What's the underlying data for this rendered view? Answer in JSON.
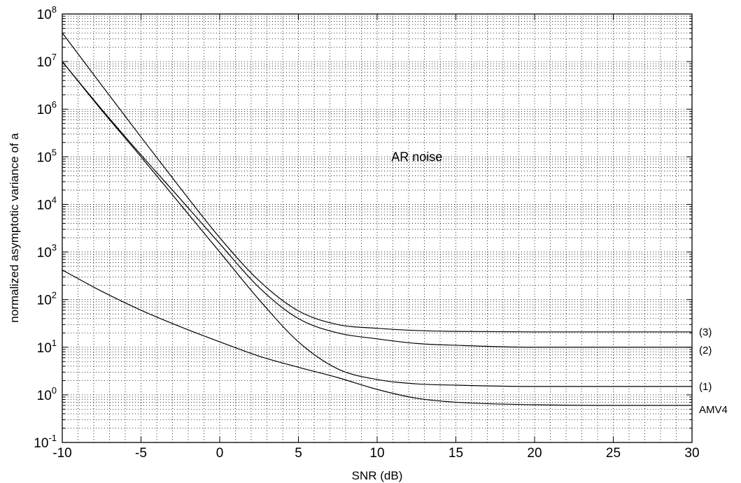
{
  "chart_data": {
    "type": "line",
    "title": "",
    "xlabel": "SNR (dB)",
    "ylabel": "normalized asymptotic variance of a",
    "xlim": [
      -10,
      30
    ],
    "ylim": [
      0.1,
      100000000
    ],
    "yscale": "log",
    "grid": true,
    "x_ticks": [
      -10,
      -5,
      0,
      5,
      10,
      15,
      20,
      25,
      30
    ],
    "x_tick_labels": [
      "-10",
      "-5",
      "0",
      "5",
      "10",
      "15",
      "20",
      "25",
      "30"
    ],
    "y_ticks": [
      {
        "base": "10",
        "exp": "-1",
        "value": 0.1
      },
      {
        "base": "10",
        "exp": "0",
        "value": 1
      },
      {
        "base": "10",
        "exp": "1",
        "value": 10
      },
      {
        "base": "10",
        "exp": "2",
        "value": 100
      },
      {
        "base": "10",
        "exp": "3",
        "value": 1000
      },
      {
        "base": "10",
        "exp": "4",
        "value": 10000
      },
      {
        "base": "10",
        "exp": "5",
        "value": 100000
      },
      {
        "base": "10",
        "exp": "6",
        "value": 1000000
      },
      {
        "base": "10",
        "exp": "7",
        "value": 10000000
      },
      {
        "base": "10",
        "exp": "8",
        "value": 100000000
      }
    ],
    "annotations": [
      {
        "text": "AR noise",
        "x": 10.9,
        "y": 100000
      }
    ],
    "series": [
      {
        "name": "(3)",
        "x": [
          -10,
          -7.5,
          -5,
          -2.5,
          0,
          2.5,
          5,
          7.5,
          10,
          12.5,
          15,
          20,
          25,
          30
        ],
        "y": [
          40000000,
          3200000,
          260000,
          22000,
          2000,
          250,
          58,
          30,
          25,
          22.5,
          21.5,
          21,
          21,
          21
        ]
      },
      {
        "name": "(2)",
        "x": [
          -10,
          -7.5,
          -5,
          -2.5,
          0,
          2.5,
          5,
          7.5,
          10,
          12.5,
          15,
          20,
          25,
          30
        ],
        "y": [
          10000000,
          1000000,
          110000,
          13000,
          1500,
          180,
          40,
          20,
          15,
          12,
          11,
          10,
          10,
          10
        ]
      },
      {
        "name": "(1)",
        "x": [
          -10,
          -7.5,
          -5,
          -2.5,
          0,
          2.5,
          5,
          7.5,
          10,
          12.5,
          15,
          20,
          25,
          30
        ],
        "y": [
          10000000,
          950000,
          100000,
          10000,
          1000,
          100,
          13,
          3.5,
          2.1,
          1.7,
          1.6,
          1.5,
          1.5,
          1.5
        ]
      },
      {
        "name": "AMV4",
        "x": [
          -10,
          -7.5,
          -5,
          -2.5,
          0,
          2.5,
          5,
          7.5,
          10,
          12.5,
          15,
          20,
          25,
          30
        ],
        "y": [
          420,
          150,
          60,
          27,
          13,
          6.5,
          3.8,
          2.3,
          1.3,
          0.85,
          0.7,
          0.62,
          0.6,
          0.6
        ]
      }
    ]
  }
}
